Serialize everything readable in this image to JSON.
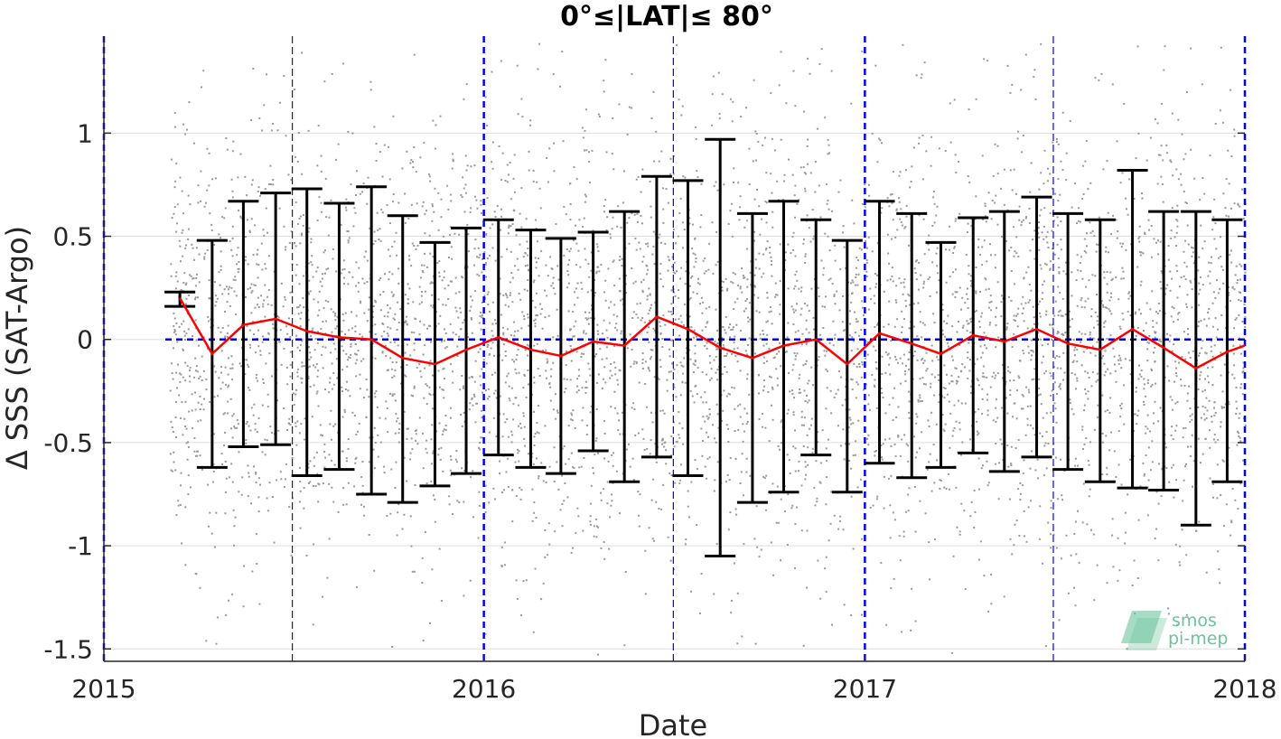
{
  "chart_data": {
    "type": "scatter",
    "title": "0°≤|LAT|≤ 80°",
    "xlabel": "Date",
    "ylabel": "Δ SSS (SAT-Argo)",
    "xlim": [
      "2015-01-01",
      "2018-01-01"
    ],
    "ylim": [
      -1.56,
      1.47
    ],
    "x_ticks": [
      "2015",
      "2016",
      "2017",
      "2018"
    ],
    "y_ticks": [
      -1.5,
      -1,
      -0.5,
      0,
      0.5,
      1
    ],
    "y_tick_labels": [
      "-1.5",
      "-1",
      "-0.5",
      "0",
      "0.5",
      "1"
    ],
    "grid": "horizontal",
    "year_lines": [
      "2015-01-01",
      "2016-01-01",
      "2017-01-01",
      "2018-01-01"
    ],
    "half_year_lines": [
      "2015-07-01",
      "2016-07-01",
      "2017-07-01"
    ],
    "zero_line": 0,
    "zero_line_start": "2015-03-01",
    "colors": {
      "mean_line": "#ff0000",
      "error_bars": "#000000",
      "scatter": "#9a9a9a",
      "reference_lines": "#0000ff",
      "grid": "#dddddd",
      "watermark": "#6cc39b"
    },
    "scatter_point_count": 5200,
    "series": [
      {
        "type": "line",
        "x": [
          "2015-03-15",
          "2015-04-15",
          "2015-05-15",
          "2015-06-15",
          "2015-07-15",
          "2015-08-15",
          "2015-09-15",
          "2015-10-15",
          "2015-11-15",
          "2015-12-15",
          "2016-01-15",
          "2016-02-15",
          "2016-03-15",
          "2016-04-15",
          "2016-05-15",
          "2016-06-15",
          "2016-07-15",
          "2016-08-15",
          "2016-09-15",
          "2016-10-15",
          "2016-11-15",
          "2016-12-15",
          "2017-01-15",
          "2017-02-15",
          "2017-03-15",
          "2017-04-15",
          "2017-05-15",
          "2017-06-15",
          "2017-07-15",
          "2017-08-15",
          "2017-09-15",
          "2017-10-15",
          "2017-11-15",
          "2017-12-15",
          "2018-01-01"
        ],
        "y": [
          0.2,
          -0.07,
          0.07,
          0.1,
          0.04,
          0.01,
          0.0,
          -0.09,
          -0.12,
          -0.05,
          0.01,
          -0.05,
          -0.08,
          -0.01,
          -0.03,
          0.11,
          0.05,
          -0.04,
          -0.09,
          -0.03,
          0.0,
          -0.12,
          0.03,
          -0.02,
          -0.07,
          0.02,
          -0.01,
          0.05,
          -0.02,
          -0.05,
          0.05,
          -0.04,
          -0.14,
          -0.06,
          -0.03
        ]
      },
      {
        "type": "errorbar",
        "x": [
          "2015-03-15",
          "2015-04-15",
          "2015-05-15",
          "2015-06-15",
          "2015-07-15",
          "2015-08-15",
          "2015-09-15",
          "2015-10-15",
          "2015-11-15",
          "2015-12-15",
          "2016-01-15",
          "2016-02-15",
          "2016-03-15",
          "2016-04-15",
          "2016-05-15",
          "2016-06-15",
          "2016-07-15",
          "2016-08-15",
          "2016-09-15",
          "2016-10-15",
          "2016-11-15",
          "2016-12-15",
          "2017-01-15",
          "2017-02-15",
          "2017-03-15",
          "2017-04-15",
          "2017-05-15",
          "2017-06-15",
          "2017-07-15",
          "2017-08-15",
          "2017-09-15",
          "2017-10-15",
          "2017-11-15",
          "2017-12-15"
        ],
        "low": [
          0.16,
          -0.62,
          -0.52,
          -0.51,
          -0.66,
          -0.63,
          -0.75,
          -0.79,
          -0.71,
          -0.65,
          -0.56,
          -0.62,
          -0.65,
          -0.54,
          -0.69,
          -0.57,
          -0.66,
          -1.05,
          -0.79,
          -0.74,
          -0.56,
          -0.74,
          -0.6,
          -0.67,
          -0.62,
          -0.55,
          -0.64,
          -0.57,
          -0.63,
          -0.69,
          -0.72,
          -0.73,
          -0.9,
          -0.69
        ],
        "high": [
          0.23,
          0.48,
          0.67,
          0.71,
          0.73,
          0.66,
          0.74,
          0.6,
          0.47,
          0.54,
          0.58,
          0.53,
          0.49,
          0.52,
          0.62,
          0.79,
          0.77,
          0.97,
          0.61,
          0.67,
          0.58,
          0.48,
          0.67,
          0.61,
          0.47,
          0.59,
          0.62,
          0.69,
          0.61,
          0.58,
          0.82,
          0.62,
          0.62,
          0.58
        ]
      }
    ],
    "watermark": {
      "line1": "smos",
      "line2": "pi-mep"
    }
  }
}
